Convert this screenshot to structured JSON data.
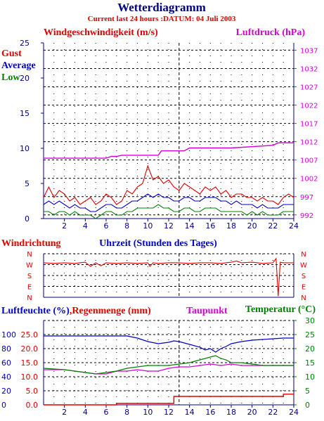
{
  "header": {
    "title": "Wetterdiagramm",
    "subtitle": "Current last 24 hours :DATUM: 04 Juli 2003"
  },
  "colors": {
    "title": "#000080",
    "gust": "#e00000",
    "average": "#0000c8",
    "low": "#008000",
    "pressure": "#d800d8",
    "axis": "#000080",
    "grid": "#000000",
    "background": "#ffffff"
  },
  "chart_data": [
    {
      "type": "line",
      "panel": "wind",
      "title": "",
      "ylabel": "Windgeschwindigkeit (m/s)",
      "y2label": "Luftdruck (hPa)",
      "xlim": [
        0,
        24
      ],
      "ylim": [
        0,
        25
      ],
      "y2lim": [
        991,
        1039
      ],
      "x_ticks": [
        2,
        4,
        6,
        8,
        10,
        12,
        14,
        16,
        18,
        20,
        22,
        24
      ],
      "y_ticks": [
        0,
        5,
        10,
        15,
        20,
        25
      ],
      "y2_ticks": [
        992,
        997,
        1002,
        1007,
        1012,
        1017,
        1022,
        1027,
        1032,
        1037
      ],
      "grid": true,
      "legend": [
        "Gust",
        "Average",
        "Low"
      ],
      "legend_position": "top-left",
      "series": [
        {
          "name": "Gust",
          "color": "#e00000",
          "x": [
            0,
            0.5,
            1,
            1.5,
            2,
            2.5,
            3,
            3.5,
            4,
            4.5,
            5,
            5.5,
            6,
            6.5,
            7,
            7.5,
            8,
            8.5,
            9,
            9.5,
            10,
            10.5,
            11,
            11.5,
            12,
            12.5,
            13,
            13.5,
            14,
            14.5,
            15,
            15.5,
            16,
            16.5,
            17,
            17.5,
            18,
            18.5,
            19,
            19.5,
            20,
            20.5,
            21,
            21.5,
            22,
            22.5,
            23,
            23.5,
            24
          ],
          "values": [
            3,
            4.5,
            3,
            4,
            3.5,
            2.5,
            3,
            2,
            2.5,
            3,
            2,
            2.5,
            3.5,
            3,
            2,
            2.5,
            4,
            3.5,
            4.5,
            5,
            7.5,
            5.5,
            6,
            5,
            5.5,
            4.5,
            4,
            5,
            4.5,
            4,
            3.5,
            4.5,
            4,
            4.5,
            3.5,
            4,
            3,
            3.5,
            3.5,
            3,
            3,
            2.5,
            3,
            2.5,
            2.5,
            2,
            3,
            3.5,
            3
          ]
        },
        {
          "name": "Average",
          "color": "#0000c8",
          "x": [
            0,
            0.5,
            1,
            1.5,
            2,
            2.5,
            3,
            3.5,
            4,
            4.5,
            5,
            5.5,
            6,
            6.5,
            7,
            7.5,
            8,
            8.5,
            9,
            9.5,
            10,
            10.5,
            11,
            11.5,
            12,
            12.5,
            13,
            13.5,
            14,
            14.5,
            15,
            15.5,
            16,
            16.5,
            17,
            17.5,
            18,
            18.5,
            19,
            19.5,
            20,
            20.5,
            21,
            21.5,
            22,
            22.5,
            23,
            23.5,
            24
          ],
          "values": [
            2,
            2.5,
            2,
            2.5,
            2,
            1.5,
            2,
            1.5,
            1.5,
            1,
            1,
            1.5,
            2,
            2,
            1.5,
            1.5,
            2,
            2.5,
            2.5,
            3,
            3.5,
            3,
            3.5,
            3,
            3,
            2.5,
            2.5,
            3,
            3,
            2.5,
            2.5,
            3,
            3,
            3,
            2.5,
            2.5,
            2,
            2.5,
            2,
            2,
            2,
            1.5,
            2,
            1.5,
            1.5,
            1.5,
            2,
            2,
            2
          ]
        },
        {
          "name": "Low",
          "color": "#008000",
          "x": [
            0,
            0.5,
            1,
            1.5,
            2,
            2.5,
            3,
            3.5,
            4,
            4.5,
            5,
            5.5,
            6,
            6.5,
            7,
            7.5,
            8,
            8.5,
            9,
            9.5,
            10,
            10.5,
            11,
            11.5,
            12,
            12.5,
            13,
            13.5,
            14,
            14.5,
            15,
            15.5,
            16,
            16.5,
            17,
            17.5,
            18,
            18.5,
            19,
            19.5,
            20,
            20.5,
            21,
            21.5,
            22,
            22.5,
            23,
            23.5,
            24
          ],
          "values": [
            1,
            1,
            0.5,
            1,
            1,
            0.5,
            1,
            0.5,
            0.5,
            0.5,
            0,
            0.5,
            1,
            1,
            0.5,
            0.5,
            1,
            1,
            1.5,
            1.5,
            1.5,
            1.5,
            2,
            1.5,
            1.5,
            1,
            1,
            1.5,
            1.5,
            1,
            1,
            1.5,
            1.5,
            1.5,
            1,
            1,
            1,
            1,
            1,
            0.5,
            1,
            0.5,
            1,
            0.5,
            0.5,
            0.5,
            1,
            1,
            1
          ]
        },
        {
          "name": "Luftdruck",
          "axis": "right",
          "color": "#d800d8",
          "x": [
            0,
            6,
            6.5,
            7,
            7.5,
            8,
            11,
            11.3,
            11.7,
            12,
            13.5,
            14,
            18,
            22,
            22.5,
            24
          ],
          "values": [
            1007.5,
            1007.5,
            1008,
            1008,
            1008.3,
            1008.3,
            1008.3,
            1009.5,
            1009.5,
            1009.5,
            1009.5,
            1010.3,
            1010.3,
            1011,
            1011.7,
            1011.7
          ]
        }
      ]
    },
    {
      "type": "line",
      "panel": "direction",
      "title": "",
      "ylabel": "Windrichtung",
      "xlabel": "Uhrzeit (Stunden des Tages)",
      "xlim": [
        0,
        24
      ],
      "y_categories": [
        "N",
        "W",
        "S",
        "E",
        "N"
      ],
      "grid": true,
      "series": [
        {
          "name": "Windrichtung",
          "color": "#e00000",
          "x": [
            0,
            1,
            2,
            3,
            4,
            4.5,
            5,
            5.5,
            6,
            7,
            8,
            9,
            10,
            10.2,
            10.5,
            11,
            12,
            13,
            14,
            15,
            16,
            17,
            18,
            18.5,
            19,
            20,
            21,
            22,
            22.3,
            22.5,
            22.7,
            23,
            24
          ],
          "values": [
            285,
            280,
            285,
            280,
            290,
            255,
            285,
            260,
            285,
            280,
            285,
            280,
            285,
            255,
            285,
            280,
            285,
            285,
            280,
            285,
            285,
            280,
            290,
            300,
            285,
            290,
            280,
            285,
            320,
            10,
            290,
            285,
            285
          ]
        }
      ]
    },
    {
      "type": "line",
      "panel": "humidity",
      "title": "",
      "ylabel": "Luftfeuchte (%)",
      "y2label": "Temperatur (°C)",
      "extra_labels": [
        "Regenmenge (mm)",
        "Taupunkt"
      ],
      "xlim": [
        0,
        24
      ],
      "x_ticks": [
        2,
        4,
        6,
        8,
        10,
        12,
        14,
        16,
        18,
        20,
        22,
        24
      ],
      "humidity_ticks": [
        0,
        20,
        40,
        60,
        80,
        100
      ],
      "rain_ticks": [
        "0.0",
        "5.0",
        "10.0",
        "15.0",
        "20.0",
        "25.0"
      ],
      "y2_ticks": [
        0,
        5,
        10,
        15,
        20,
        25,
        30
      ],
      "ylim": [
        0,
        30
      ],
      "grid": true,
      "series": [
        {
          "name": "Luftfeuchte",
          "unit": "%",
          "color": "#0000c8",
          "x": [
            0,
            2,
            4,
            6,
            8,
            9,
            10,
            11,
            12,
            12.5,
            13,
            14,
            15,
            15.5,
            16,
            16.5,
            17,
            17.5,
            18,
            19,
            20,
            21,
            22,
            23,
            24
          ],
          "values": [
            98,
            98,
            98,
            98,
            98,
            95,
            90,
            87,
            89,
            91,
            90,
            86,
            82,
            78,
            80,
            75,
            80,
            83,
            87,
            90,
            92,
            93,
            94,
            95,
            95
          ]
        },
        {
          "name": "Regenmenge",
          "unit": "mm",
          "color": "#e00000",
          "x": [
            0,
            6.5,
            7,
            8,
            12,
            12.5,
            13,
            22.5,
            23,
            24
          ],
          "values": [
            0,
            0,
            0.5,
            0.5,
            0.5,
            3,
            3,
            3,
            3.8,
            3.8
          ]
        },
        {
          "name": "Taupunkt",
          "unit": "°C",
          "color": "#d800d8",
          "x": [
            0,
            2,
            4,
            5,
            6,
            7,
            8,
            9,
            10,
            11,
            12,
            13,
            14,
            15,
            16,
            17,
            18,
            19,
            20,
            21,
            22,
            23,
            24
          ],
          "values": [
            12.5,
            12.5,
            11.5,
            11,
            11,
            12,
            12,
            12.5,
            12,
            12,
            13,
            13.5,
            13.5,
            14,
            14.5,
            14,
            14.5,
            14,
            14,
            14,
            14,
            14,
            14
          ]
        },
        {
          "name": "Temperatur",
          "unit": "°C",
          "color": "#008000",
          "x": [
            0,
            2,
            4,
            5,
            6,
            7,
            8,
            9,
            10,
            11,
            12,
            13,
            14,
            15,
            16,
            16.5,
            17,
            17.5,
            18,
            19,
            20,
            21,
            22,
            23,
            24
          ],
          "values": [
            13,
            12.5,
            11.5,
            11,
            11.5,
            12,
            13,
            13.5,
            14,
            14,
            14,
            14.5,
            15,
            16,
            17,
            17.5,
            16.5,
            16,
            15,
            15,
            14.5,
            14,
            14,
            14,
            14
          ]
        }
      ]
    }
  ]
}
